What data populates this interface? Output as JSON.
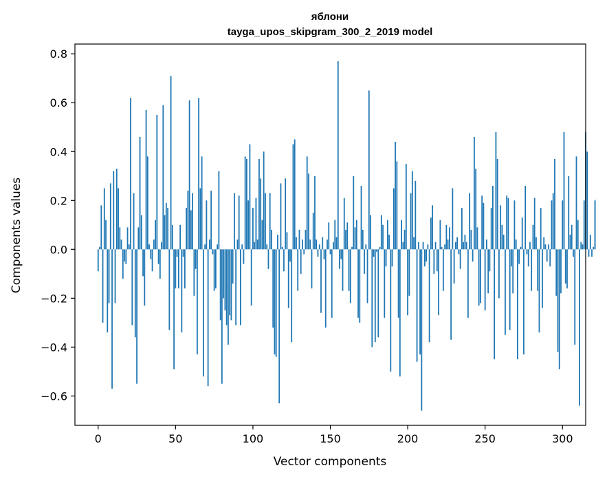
{
  "chart_data": {
    "type": "bar",
    "title_line1": "яблони",
    "title_line2": "tayga_upos_skipgram_300_2_2019 model",
    "xlabel": "Vector components",
    "ylabel": "Components values",
    "xlim": [
      -15,
      315
    ],
    "ylim": [
      -0.72,
      0.84
    ],
    "x_ticks": [
      0,
      50,
      100,
      150,
      200,
      250,
      300
    ],
    "x_tick_labels": [
      "0",
      "50",
      "100",
      "150",
      "200",
      "250",
      "300"
    ],
    "y_ticks": [
      -0.6,
      -0.4,
      -0.2,
      0.0,
      0.2,
      0.4,
      0.6,
      0.8
    ],
    "y_tick_labels": [
      "−0.6",
      "−0.4",
      "−0.2",
      "0.0",
      "0.2",
      "0.4",
      "0.6",
      "0.8"
    ],
    "bar_color": "#1f77b4",
    "values": [
      -0.09,
      0.01,
      0.18,
      -0.3,
      0.25,
      0.12,
      -0.34,
      -0.22,
      0.27,
      -0.57,
      0.32,
      -0.22,
      0.33,
      0.25,
      0.09,
      0.04,
      -0.12,
      -0.05,
      -0.06,
      0.09,
      0.02,
      0.62,
      -0.31,
      0.23,
      -0.36,
      -0.55,
      0.09,
      0.46,
      0.14,
      -0.11,
      -0.23,
      0.57,
      0.38,
      0.02,
      -0.04,
      -0.09,
      0.04,
      0.12,
      0.55,
      -0.06,
      -0.12,
      0.03,
      0.59,
      0.14,
      0.19,
      0.17,
      -0.33,
      0.71,
      0.1,
      -0.49,
      -0.16,
      -0.03,
      -0.16,
      0.1,
      -0.34,
      -0.03,
      -0.16,
      0.17,
      0.24,
      0.61,
      0.16,
      0.23,
      -0.19,
      -0.08,
      -0.43,
      0.62,
      0.25,
      0.38,
      -0.52,
      0.02,
      0.2,
      -0.56,
      0.04,
      0.24,
      -0.02,
      -0.17,
      -0.16,
      0.02,
      0.32,
      -0.29,
      -0.55,
      -0.2,
      -0.25,
      -0.31,
      -0.39,
      -0.27,
      -0.29,
      -0.14,
      0.23,
      -0.31,
      0.04,
      0.22,
      -0.31,
      0.02,
      -0.06,
      0.38,
      0.37,
      0.2,
      0.43,
      -0.23,
      0.17,
      0.03,
      0.21,
      0.04,
      0.37,
      0.29,
      0.12,
      0.4,
      0.23,
      0.02,
      -0.08,
      0.23,
      0.08,
      -0.32,
      -0.43,
      -0.44,
      0.06,
      -0.63,
      0.27,
      0.01,
      -0.09,
      0.29,
      0.07,
      -0.24,
      -0.05,
      -0.38,
      0.43,
      0.45,
      0.05,
      -0.17,
      0.08,
      -0.1,
      0.04,
      -0.02,
      0.08,
      0.38,
      0.31,
      0.04,
      -0.16,
      0.15,
      0.3,
      0.04,
      -0.03,
      0.02,
      -0.26,
      0.05,
      -0.04,
      -0.32,
      0.04,
      0.11,
      -0.02,
      -0.28,
      0.03,
      0.12,
      0.05,
      0.77,
      -0.08,
      -0.04,
      -0.17,
      0.21,
      0.08,
      0.11,
      -0.17,
      -0.22,
      0.01,
      0.3,
      0.09,
      0.12,
      -0.28,
      -0.3,
      0.26,
      0.08,
      -0.1,
      0.02,
      -0.22,
      0.65,
      0.14,
      -0.4,
      -0.03,
      -0.38,
      -0.01,
      -0.36,
      0.01,
      0.14,
      0.1,
      -0.28,
      -0.07,
      0.12,
      0.06,
      -0.5,
      -0.07,
      0.25,
      0.44,
      0.36,
      -0.28,
      -0.52,
      0.12,
      0.03,
      0.08,
      0.35,
      -0.27,
      -0.19,
      0.23,
      0.32,
      0.05,
      0.28,
      -0.46,
      0.03,
      -0.43,
      -0.66,
      0.03,
      -0.07,
      -0.05,
      0.02,
      -0.38,
      0.13,
      0.18,
      -0.1,
      0.03,
      -0.09,
      -0.27,
      0.12,
      0.01,
      -0.17,
      0.02,
      0.1,
      0.04,
      0.09,
      -0.37,
      0.25,
      -0.14,
      0.03,
      0.05,
      -0.02,
      -0.08,
      0.17,
      0.03,
      0.06,
      0.03,
      -0.28,
      0.23,
      0.08,
      -0.05,
      0.46,
      0.33,
      0.09,
      -0.23,
      -0.22,
      0.22,
      0.19,
      -0.25,
      0.04,
      -0.18,
      -0.09,
      0.17,
      0.26,
      -0.45,
      0.48,
      0.37,
      -0.2,
      0.18,
      0.1,
      0.06,
      -0.35,
      0.22,
      0.21,
      -0.33,
      -0.07,
      -0.18,
      0.2,
      0.04,
      -0.45,
      -0.06,
      0.01,
      0.13,
      -0.43,
      0.26,
      -0.02,
      -0.07,
      0.03,
      -0.17,
      0.1,
      0.21,
      0.05,
      -0.17,
      -0.34,
      0.17,
      -0.24,
      0.05,
      0.02,
      -0.05,
      0.02,
      -0.07,
      0.2,
      0.23,
      0.37,
      -0.19,
      -0.42,
      -0.49,
      -0.18,
      0.2,
      0.48,
      -0.14,
      -0.16,
      0.3,
      0.06,
      0.1,
      -0.03,
      -0.39,
      0.38,
      0.12,
      -0.64,
      0.03,
      0.02,
      0.2,
      0.48,
      0.4,
      -0.03,
      0.06,
      -0.03,
      0.01,
      0.2,
      0.21,
      0.07
    ]
  }
}
